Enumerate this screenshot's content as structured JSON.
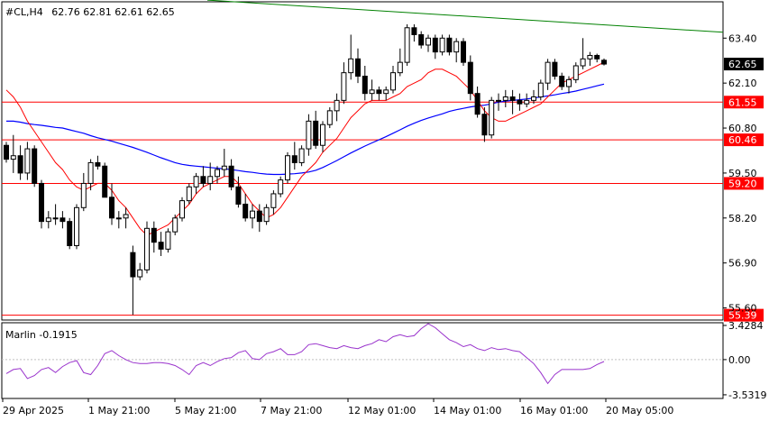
{
  "header": {
    "symbol": "#CL,H4",
    "ohlc": "62.76 62.81 62.61 62.65"
  },
  "indicator": {
    "label": "Marlin -0.1915"
  },
  "colors": {
    "candle_bull": "#ffffff",
    "candle_bear": "#000000",
    "level": "#ff0000",
    "ma_fast": "#ff0000",
    "ma_slow": "#0000ff",
    "trend": "#008000",
    "oscillator": "#9932cc",
    "arrow": "#3cb043"
  },
  "chart_data": [
    {
      "type": "candlestick",
      "title": "#CL,H4",
      "y_ticks": [
        "63.40",
        "62.10",
        "60.80",
        "59.50",
        "58.20",
        "56.90",
        "55.60"
      ],
      "ylim": [
        55.25,
        64.45
      ],
      "current_price": "62.65",
      "levels": [
        "61.55",
        "60.46",
        "59.20",
        "55.39"
      ],
      "x_ticks": [
        "29 Apr 2025",
        "1 May 21:00",
        "5 May 21:00",
        "7 May 21:00",
        "12 May 01:00",
        "14 May 01:00",
        "16 May 01:00",
        "20 May 05:00"
      ],
      "candles": [
        [
          60.3,
          60.4,
          59.8,
          59.9
        ],
        [
          59.9,
          60.6,
          59.5,
          60.0
        ],
        [
          60.0,
          60.3,
          59.3,
          59.5
        ],
        [
          59.5,
          60.4,
          59.3,
          60.2
        ],
        [
          60.2,
          60.3,
          59.1,
          59.2
        ],
        [
          59.2,
          59.3,
          57.9,
          58.1
        ],
        [
          58.1,
          58.4,
          57.9,
          58.2
        ],
        [
          58.2,
          58.6,
          58.0,
          58.2
        ],
        [
          58.2,
          58.4,
          57.9,
          58.1
        ],
        [
          58.1,
          58.2,
          57.3,
          57.4
        ],
        [
          57.4,
          58.6,
          57.3,
          58.5
        ],
        [
          58.5,
          59.5,
          58.4,
          59.2
        ],
        [
          59.2,
          59.9,
          59.0,
          59.8
        ],
        [
          59.8,
          60.0,
          59.6,
          59.7
        ],
        [
          59.7,
          59.8,
          58.8,
          58.8
        ],
        [
          58.8,
          59.2,
          58.0,
          58.2
        ],
        [
          58.2,
          58.4,
          57.9,
          58.2
        ],
        [
          58.2,
          58.5,
          57.9,
          58.3
        ],
        [
          57.2,
          57.4,
          55.4,
          56.5
        ],
        [
          56.5,
          56.9,
          56.4,
          56.7
        ],
        [
          56.7,
          58.1,
          56.6,
          57.9
        ],
        [
          57.9,
          58.1,
          57.2,
          57.5
        ],
        [
          57.5,
          57.8,
          57.1,
          57.3
        ],
        [
          57.3,
          57.9,
          57.2,
          57.8
        ],
        [
          57.8,
          58.3,
          57.7,
          58.2
        ],
        [
          58.2,
          58.8,
          58.1,
          58.7
        ],
        [
          58.7,
          59.2,
          58.6,
          59.1
        ],
        [
          59.1,
          59.5,
          58.9,
          59.4
        ],
        [
          59.4,
          59.7,
          59.1,
          59.2
        ],
        [
          59.2,
          59.8,
          59.0,
          59.4
        ],
        [
          59.4,
          59.7,
          59.2,
          59.6
        ],
        [
          59.6,
          60.2,
          59.4,
          59.7
        ],
        [
          59.7,
          59.9,
          59.0,
          59.1
        ],
        [
          59.1,
          59.4,
          58.5,
          58.6
        ],
        [
          58.6,
          58.9,
          58.1,
          58.2
        ],
        [
          58.2,
          58.6,
          57.9,
          58.4
        ],
        [
          58.4,
          58.6,
          57.8,
          58.1
        ],
        [
          58.1,
          58.6,
          58.0,
          58.5
        ],
        [
          58.5,
          59.0,
          58.3,
          58.9
        ],
        [
          58.9,
          59.4,
          58.8,
          59.3
        ],
        [
          59.3,
          60.1,
          59.2,
          60.0
        ],
        [
          60.0,
          60.4,
          59.6,
          59.8
        ],
        [
          59.8,
          60.3,
          59.7,
          60.2
        ],
        [
          60.2,
          61.2,
          60.0,
          61.0
        ],
        [
          61.0,
          61.3,
          60.2,
          60.3
        ],
        [
          60.3,
          61.0,
          60.1,
          60.9
        ],
        [
          60.9,
          61.4,
          60.8,
          61.3
        ],
        [
          61.3,
          61.8,
          61.0,
          61.6
        ],
        [
          61.6,
          62.7,
          61.5,
          62.4
        ],
        [
          62.4,
          63.5,
          62.2,
          62.8
        ],
        [
          62.8,
          63.1,
          62.1,
          62.3
        ],
        [
          62.3,
          62.6,
          61.6,
          61.8
        ],
        [
          61.8,
          62.2,
          61.6,
          61.9
        ],
        [
          61.9,
          62.0,
          61.6,
          61.8
        ],
        [
          61.8,
          62.0,
          61.6,
          61.9
        ],
        [
          61.9,
          62.6,
          61.8,
          62.4
        ],
        [
          62.4,
          63.1,
          62.3,
          62.7
        ],
        [
          62.7,
          63.8,
          62.6,
          63.7
        ],
        [
          63.7,
          63.8,
          63.3,
          63.5
        ],
        [
          63.5,
          63.6,
          63.1,
          63.2
        ],
        [
          63.2,
          63.5,
          63.0,
          63.4
        ],
        [
          63.4,
          63.5,
          62.8,
          63.0
        ],
        [
          63.0,
          63.5,
          62.9,
          63.4
        ],
        [
          63.4,
          63.5,
          62.9,
          63.0
        ],
        [
          63.0,
          63.4,
          62.7,
          63.3
        ],
        [
          63.3,
          63.4,
          62.6,
          62.7
        ],
        [
          62.7,
          62.9,
          61.6,
          61.8
        ],
        [
          61.8,
          62.0,
          61.1,
          61.2
        ],
        [
          61.2,
          61.4,
          60.4,
          60.6
        ],
        [
          60.6,
          61.7,
          60.5,
          61.6
        ],
        [
          61.6,
          61.8,
          61.3,
          61.6
        ],
        [
          61.6,
          61.9,
          61.4,
          61.7
        ],
        [
          61.7,
          61.9,
          61.2,
          61.6
        ],
        [
          61.6,
          61.8,
          61.3,
          61.5
        ],
        [
          61.5,
          61.8,
          61.4,
          61.6
        ],
        [
          61.6,
          61.9,
          61.5,
          61.7
        ],
        [
          61.7,
          62.2,
          61.6,
          62.1
        ],
        [
          62.1,
          62.8,
          61.9,
          62.7
        ],
        [
          62.7,
          62.8,
          62.2,
          62.3
        ],
        [
          62.3,
          62.4,
          61.9,
          62.0
        ],
        [
          62.0,
          62.3,
          61.8,
          62.2
        ],
        [
          62.2,
          62.7,
          62.1,
          62.6
        ],
        [
          62.6,
          63.4,
          62.5,
          62.8
        ],
        [
          62.8,
          63.0,
          62.6,
          62.9
        ],
        [
          62.9,
          62.95,
          62.7,
          62.8
        ],
        [
          62.76,
          62.81,
          62.61,
          62.65
        ]
      ],
      "series": [
        {
          "values": [
            61.9,
            61.7,
            61.4,
            61.0,
            60.7,
            60.4,
            60.1,
            59.8,
            59.6,
            59.3,
            59.1,
            59.0,
            59.1,
            59.2,
            59.2,
            59.0,
            58.7,
            58.5,
            58.2,
            57.9,
            57.7,
            57.8,
            57.9,
            58.0,
            58.2,
            58.4,
            58.6,
            58.9,
            59.1,
            59.2,
            59.3,
            59.4,
            59.4,
            59.2,
            58.9,
            58.6,
            58.4,
            58.2,
            58.3,
            58.5,
            58.8,
            59.1,
            59.4,
            59.6,
            59.8,
            60.1,
            60.3,
            60.5,
            60.8,
            61.1,
            61.3,
            61.5,
            61.6,
            61.6,
            61.6,
            61.7,
            61.8,
            62.0,
            62.1,
            62.2,
            62.4,
            62.5,
            62.5,
            62.4,
            62.3,
            62.1,
            61.9,
            61.6,
            61.3,
            61.1,
            61.0,
            61.0,
            61.1,
            61.2,
            61.3,
            61.4,
            61.5,
            61.7,
            61.9,
            62.1,
            62.2,
            62.3,
            62.4,
            62.5,
            62.6,
            62.7
          ]
        },
        {
          "values": [
            61.0,
            61.0,
            60.97,
            60.93,
            60.9,
            60.88,
            60.85,
            60.82,
            60.8,
            60.75,
            60.7,
            60.65,
            60.58,
            60.52,
            60.47,
            60.42,
            60.36,
            60.3,
            60.24,
            60.17,
            60.1,
            60.02,
            59.94,
            59.87,
            59.8,
            59.75,
            59.72,
            59.7,
            59.68,
            59.66,
            59.64,
            59.62,
            59.6,
            59.57,
            59.54,
            59.52,
            59.49,
            59.47,
            59.46,
            59.46,
            59.47,
            59.48,
            59.5,
            59.53,
            59.58,
            59.66,
            59.76,
            59.86,
            59.97,
            60.08,
            60.18,
            60.28,
            60.37,
            60.46,
            60.55,
            60.65,
            60.75,
            60.85,
            60.94,
            61.02,
            61.09,
            61.15,
            61.21,
            61.28,
            61.33,
            61.37,
            61.41,
            61.44,
            61.46,
            61.5,
            61.55,
            61.58,
            61.6,
            61.62,
            61.64,
            61.67,
            61.7,
            61.73,
            61.76,
            61.8,
            61.83,
            61.87,
            61.92,
            61.97,
            62.02,
            62.07
          ]
        }
      ],
      "trendline": [
        [
          0,
          64.5
        ],
        [
          87,
          63.57
        ]
      ]
    },
    {
      "type": "line",
      "title": "Marlin -0.1915",
      "y_ticks": [
        "3.4284",
        "0.00",
        "-3.5319"
      ],
      "ylim": [
        -3.9,
        3.7
      ],
      "values": [
        -1.4,
        -1.0,
        -0.9,
        -1.9,
        -1.6,
        -1.0,
        -0.8,
        -1.3,
        -0.7,
        -0.3,
        -0.1,
        -1.3,
        -1.5,
        -0.6,
        0.6,
        0.9,
        0.4,
        0.0,
        -0.3,
        -0.4,
        -0.4,
        -0.3,
        -0.3,
        -0.4,
        -0.6,
        -1.0,
        -1.5,
        -0.6,
        -0.3,
        -0.6,
        -0.2,
        0.1,
        0.2,
        0.7,
        0.9,
        0.1,
        0.0,
        0.6,
        0.8,
        1.1,
        0.5,
        0.5,
        0.8,
        1.5,
        1.6,
        1.4,
        1.2,
        1.1,
        1.4,
        1.2,
        1.1,
        1.4,
        1.6,
        2.0,
        1.8,
        2.3,
        2.5,
        2.3,
        2.4,
        3.1,
        3.6,
        3.2,
        2.6,
        2.0,
        1.7,
        1.3,
        1.5,
        1.1,
        0.9,
        1.2,
        1.0,
        1.1,
        0.9,
        0.8,
        0.2,
        -0.4,
        -1.3,
        -2.4,
        -1.5,
        -1.0,
        -1.0,
        -1.0,
        -1.0,
        -0.9,
        -0.5,
        -0.19
      ],
      "signal_x": 86
    }
  ]
}
